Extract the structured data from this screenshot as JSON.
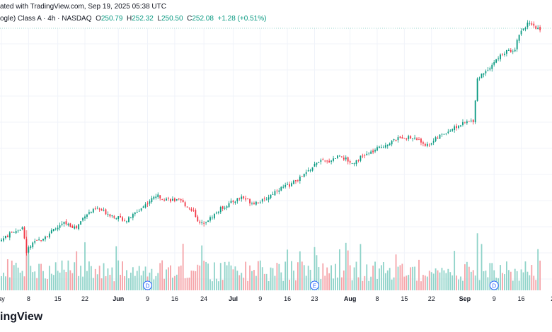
{
  "header": {
    "published": "ated with TradingView.com, Sep 19, 2025 05:38 UTC",
    "symbol": "ogle) Class A · 4h · NASDAQ",
    "o_label": "O",
    "o_value": "250.79",
    "h_label": "H",
    "h_value": "252.32",
    "l_label": "L",
    "l_value": "250.50",
    "c_label": "C",
    "c_value": "252.08",
    "change": "+1.28 (+0.51%)"
  },
  "brand": {
    "text": "ingView"
  },
  "colors": {
    "up": "#089981",
    "down": "#f23645",
    "up_vol": "#8fd3c9",
    "down_vol": "#f5a3a8",
    "grid": "#f0f3fa",
    "lastline": "#9fd8d0"
  },
  "chart_data": {
    "type": "candlestick",
    "x_tick_labels": [
      "ay",
      "8",
      "15",
      "22",
      "Jun",
      "9",
      "16",
      "24",
      "Jul",
      "9",
      "16",
      "23",
      "Aug",
      "8",
      "15",
      "22",
      "Sep",
      "9",
      "16",
      "2"
    ],
    "x_tick_index": [
      0,
      13,
      27,
      40,
      56,
      70,
      83,
      97,
      111,
      124,
      137,
      150,
      167,
      180,
      193,
      206,
      222,
      236,
      249,
      264
    ],
    "ylim": [
      158,
      258
    ],
    "last_price": 252.08,
    "events": [
      {
        "label": "D",
        "index": 70
      },
      {
        "label": "E",
        "index": 150
      },
      {
        "label": "D",
        "index": 236
      }
    ],
    "anchors": [
      [
        0,
        163.5
      ],
      [
        6,
        167.0
      ],
      [
        10,
        168.5
      ],
      [
        12,
        158.5
      ],
      [
        14,
        161.0
      ],
      [
        20,
        164.5
      ],
      [
        26,
        168.0
      ],
      [
        30,
        170.5
      ],
      [
        36,
        168.5
      ],
      [
        40,
        174.0
      ],
      [
        46,
        176.5
      ],
      [
        52,
        174.0
      ],
      [
        60,
        171.5
      ],
      [
        68,
        177.5
      ],
      [
        74,
        182.0
      ],
      [
        80,
        180.5
      ],
      [
        86,
        179.5
      ],
      [
        92,
        175.5
      ],
      [
        95,
        170.0
      ],
      [
        100,
        172.5
      ],
      [
        105,
        176.5
      ],
      [
        110,
        179.0
      ],
      [
        115,
        181.5
      ],
      [
        120,
        179.0
      ],
      [
        126,
        180.0
      ],
      [
        132,
        184.5
      ],
      [
        138,
        186.5
      ],
      [
        144,
        190.0
      ],
      [
        148,
        193.0
      ],
      [
        152,
        196.5
      ],
      [
        156,
        196.0
      ],
      [
        162,
        199.0
      ],
      [
        168,
        195.5
      ],
      [
        172,
        198.0
      ],
      [
        178,
        200.5
      ],
      [
        184,
        203.5
      ],
      [
        192,
        206.5
      ],
      [
        198,
        206.0
      ],
      [
        204,
        203.0
      ],
      [
        210,
        207.0
      ],
      [
        216,
        210.0
      ],
      [
        222,
        212.5
      ],
      [
        226,
        213.5
      ],
      [
        228,
        231.0
      ],
      [
        234,
        236.0
      ],
      [
        240,
        241.5
      ],
      [
        246,
        243.5
      ],
      [
        248,
        250.0
      ],
      [
        252,
        254.0
      ],
      [
        256,
        252.0
      ],
      [
        258,
        252.08
      ]
    ]
  }
}
